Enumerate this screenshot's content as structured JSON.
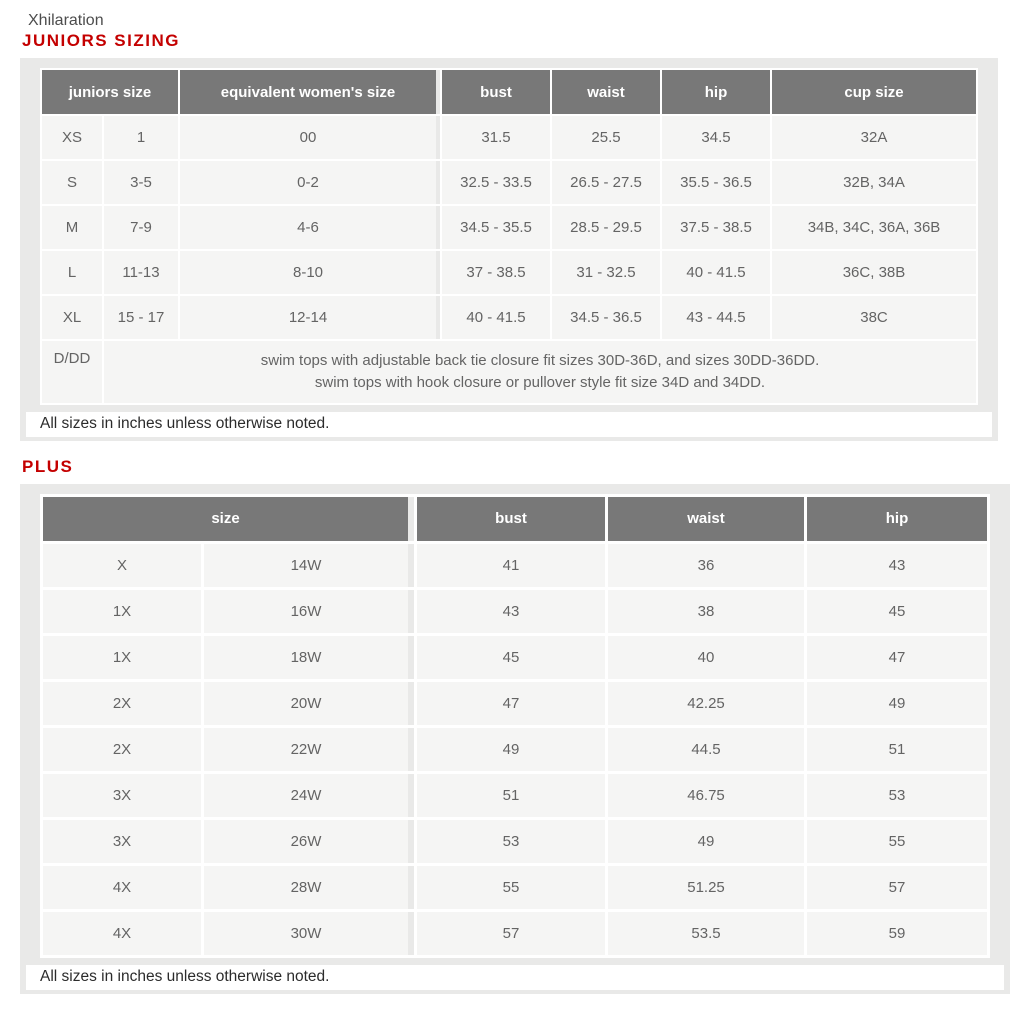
{
  "colors": {
    "accent_red": "#c40000",
    "header_bg": "#787878",
    "panel_bg": "#e9e9e8",
    "cell_bg": "#f5f5f4",
    "body_text": "#646464"
  },
  "brand": "Xhilaration",
  "juniors": {
    "heading": "JUNIORS SIZING",
    "columns": {
      "size": "juniors size",
      "womens": "equivalent women's size",
      "bust": "bust",
      "waist": "waist",
      "hip": "hip",
      "cup": "cup size"
    },
    "rows": [
      [
        "XS",
        "1",
        "00",
        "31.5",
        "25.5",
        "34.5",
        "32A"
      ],
      [
        "S",
        "3-5",
        "0-2",
        "32.5 - 33.5",
        "26.5 - 27.5",
        "35.5 - 36.5",
        "32B, 34A"
      ],
      [
        "M",
        "7-9",
        "4-6",
        "34.5 - 35.5",
        "28.5 - 29.5",
        "37.5 - 38.5",
        "34B, 34C, 36A, 36B"
      ],
      [
        "L",
        "11-13",
        "8-10",
        "37 - 38.5",
        "31 - 32.5",
        "40 - 41.5",
        "36C, 38B"
      ],
      [
        "XL",
        "15 - 17",
        "12-14",
        "40 - 41.5",
        "34.5 - 36.5",
        "43 - 44.5",
        "38C"
      ]
    ],
    "dd_row": {
      "label": "D/DD",
      "line1": "swim tops with adjustable back tie closure fit sizes 30D-36D, and sizes 30DD-36DD.",
      "line2": "swim tops with hook closure or pullover style fit size 34D and 34DD."
    },
    "footnote": "All sizes in inches unless otherwise noted."
  },
  "plus": {
    "heading": "PLUS",
    "columns": {
      "size": "size",
      "bust": "bust",
      "waist": "waist",
      "hip": "hip"
    },
    "rows": [
      [
        "X",
        "14W",
        "41",
        "36",
        "43"
      ],
      [
        "1X",
        "16W",
        "43",
        "38",
        "45"
      ],
      [
        "1X",
        "18W",
        "45",
        "40",
        "47"
      ],
      [
        "2X",
        "20W",
        "47",
        "42.25",
        "49"
      ],
      [
        "2X",
        "22W",
        "49",
        "44.5",
        "51"
      ],
      [
        "3X",
        "24W",
        "51",
        "46.75",
        "53"
      ],
      [
        "3X",
        "26W",
        "53",
        "49",
        "55"
      ],
      [
        "4X",
        "28W",
        "55",
        "51.25",
        "57"
      ],
      [
        "4X",
        "30W",
        "57",
        "53.5",
        "59"
      ]
    ],
    "footnote": "All sizes in inches unless otherwise noted."
  }
}
